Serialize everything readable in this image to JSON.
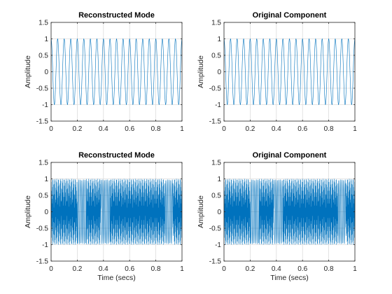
{
  "chart_data": [
    {
      "type": "line",
      "title": "Reconstructed Mode",
      "xlabel": "",
      "ylabel": "Amplitude",
      "xlim": [
        0,
        1
      ],
      "ylim": [
        -1.5,
        1.5
      ],
      "grid": true,
      "x_ticks": [
        0,
        0.2,
        0.4,
        0.6,
        0.8,
        1
      ],
      "x_tick_labels": [
        "0",
        "0.2",
        "0.4",
        "0.6",
        "0.8",
        "1"
      ],
      "y_ticks": [
        -1.5,
        -1,
        -0.5,
        0,
        0.5,
        1,
        1.5
      ],
      "y_tick_labels": [
        "-1.5",
        "-1",
        "-0.5",
        "0",
        "0.5",
        "1",
        "1.5"
      ],
      "color": "#0072BD",
      "signal": {
        "kind": "sinusoid",
        "amplitude": 1,
        "frequency_hz": 20,
        "phase_cycles": 0.25,
        "sample_rate_hz": 1000,
        "x_start": 0,
        "x_end": 1
      }
    },
    {
      "type": "line",
      "title": "Original Component",
      "xlabel": "",
      "ylabel": "Amplitude",
      "xlim": [
        0,
        1
      ],
      "ylim": [
        -1.5,
        1.5
      ],
      "grid": true,
      "x_ticks": [
        0,
        0.2,
        0.4,
        0.6,
        0.8,
        1
      ],
      "x_tick_labels": [
        "0",
        "0.2",
        "0.4",
        "0.6",
        "0.8",
        "1"
      ],
      "y_ticks": [
        -1.5,
        -1,
        -0.5,
        0,
        0.5,
        1,
        1.5
      ],
      "y_tick_labels": [
        "-1.5",
        "-1",
        "-0.5",
        "0",
        "0.5",
        "1",
        "1.5"
      ],
      "color": "#0072BD",
      "signal": {
        "kind": "sinusoid",
        "amplitude": 1,
        "frequency_hz": 20,
        "phase_cycles": 0.25,
        "sample_rate_hz": 1000,
        "x_start": 0,
        "x_end": 1
      }
    },
    {
      "type": "line",
      "title": "Reconstructed Mode",
      "xlabel": "Time (secs)",
      "ylabel": "Amplitude",
      "xlim": [
        0,
        1
      ],
      "ylim": [
        -1.5,
        1.5
      ],
      "grid": true,
      "x_ticks": [
        0,
        0.2,
        0.4,
        0.6,
        0.8,
        1
      ],
      "x_tick_labels": [
        "0",
        "0.2",
        "0.4",
        "0.6",
        "0.8",
        "1"
      ],
      "y_ticks": [
        -1.5,
        -1,
        -0.5,
        0,
        0.5,
        1,
        1.5
      ],
      "y_tick_labels": [
        "-1.5",
        "-1",
        "-0.5",
        "0",
        "0.5",
        "1",
        "1.5"
      ],
      "color": "#0072BD",
      "signal": {
        "kind": "chirp_dense",
        "amplitude": 1,
        "sample_rate_hz": 1000,
        "x_start": 0,
        "x_end": 1,
        "sparse_regions": [
          [
            0.2,
            0.27
          ],
          [
            0.38,
            0.45
          ],
          [
            0.87,
            0.93
          ]
        ]
      }
    },
    {
      "type": "line",
      "title": "Original Component",
      "xlabel": "Time (secs)",
      "ylabel": "Amplitude",
      "xlim": [
        0,
        1
      ],
      "ylim": [
        -1.5,
        1.5
      ],
      "grid": true,
      "x_ticks": [
        0,
        0.2,
        0.4,
        0.6,
        0.8,
        1
      ],
      "x_tick_labels": [
        "0",
        "0.2",
        "0.4",
        "0.6",
        "0.8",
        "1"
      ],
      "y_ticks": [
        -1.5,
        -1,
        -0.5,
        0,
        0.5,
        1,
        1.5
      ],
      "y_tick_labels": [
        "-1.5",
        "-1",
        "-0.5",
        "0",
        "0.5",
        "1",
        "1.5"
      ],
      "color": "#0072BD",
      "signal": {
        "kind": "chirp_dense",
        "amplitude": 1,
        "sample_rate_hz": 1000,
        "x_start": 0,
        "x_end": 1,
        "sparse_regions": [
          [
            0.2,
            0.27
          ],
          [
            0.38,
            0.45
          ],
          [
            0.87,
            0.93
          ]
        ]
      }
    }
  ]
}
